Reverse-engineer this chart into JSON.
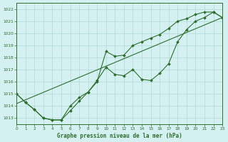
{
  "title": "Graphe pression niveau de la mer (hPa)",
  "background_color": "#d4f0f0",
  "line_color": "#2d6e2d",
  "grid_color": "#b0d8d8",
  "x_min": 0,
  "x_max": 23,
  "y_min": 1012.5,
  "y_max": 1022.5,
  "y_ticks": [
    1013,
    1014,
    1015,
    1016,
    1017,
    1018,
    1019,
    1020,
    1021,
    1022
  ],
  "series_straight": [
    [
      0,
      1014.2
    ],
    [
      23,
      1021.3
    ]
  ],
  "series_jagged1": [
    [
      0,
      1015.0
    ],
    [
      1,
      1014.3
    ],
    [
      2,
      1013.7
    ],
    [
      3,
      1013.0
    ],
    [
      4,
      1012.85
    ],
    [
      5,
      1012.85
    ],
    [
      6,
      1013.6
    ],
    [
      7,
      1014.4
    ],
    [
      8,
      1015.15
    ],
    [
      9,
      1016.0
    ],
    [
      10,
      1018.5
    ],
    [
      11,
      1018.1
    ],
    [
      12,
      1018.2
    ],
    [
      13,
      1019.0
    ],
    [
      14,
      1019.3
    ],
    [
      15,
      1019.6
    ],
    [
      16,
      1019.9
    ],
    [
      17,
      1020.4
    ],
    [
      18,
      1021.0
    ],
    [
      19,
      1021.2
    ],
    [
      20,
      1021.55
    ],
    [
      21,
      1021.75
    ],
    [
      22,
      1021.75
    ],
    [
      23,
      1021.3
    ]
  ],
  "series_jagged2": [
    [
      0,
      1015.0
    ],
    [
      1,
      1014.3
    ],
    [
      2,
      1013.7
    ],
    [
      3,
      1013.0
    ],
    [
      4,
      1012.85
    ],
    [
      5,
      1012.85
    ],
    [
      6,
      1014.0
    ],
    [
      7,
      1014.7
    ],
    [
      8,
      1015.15
    ],
    [
      9,
      1016.1
    ],
    [
      10,
      1017.2
    ],
    [
      11,
      1016.6
    ],
    [
      12,
      1016.5
    ],
    [
      13,
      1017.0
    ],
    [
      14,
      1016.2
    ],
    [
      15,
      1016.1
    ],
    [
      16,
      1016.7
    ],
    [
      17,
      1017.5
    ],
    [
      18,
      1019.3
    ],
    [
      19,
      1020.3
    ],
    [
      20,
      1021.0
    ],
    [
      21,
      1021.3
    ],
    [
      22,
      1021.75
    ],
    [
      23,
      1021.3
    ]
  ]
}
